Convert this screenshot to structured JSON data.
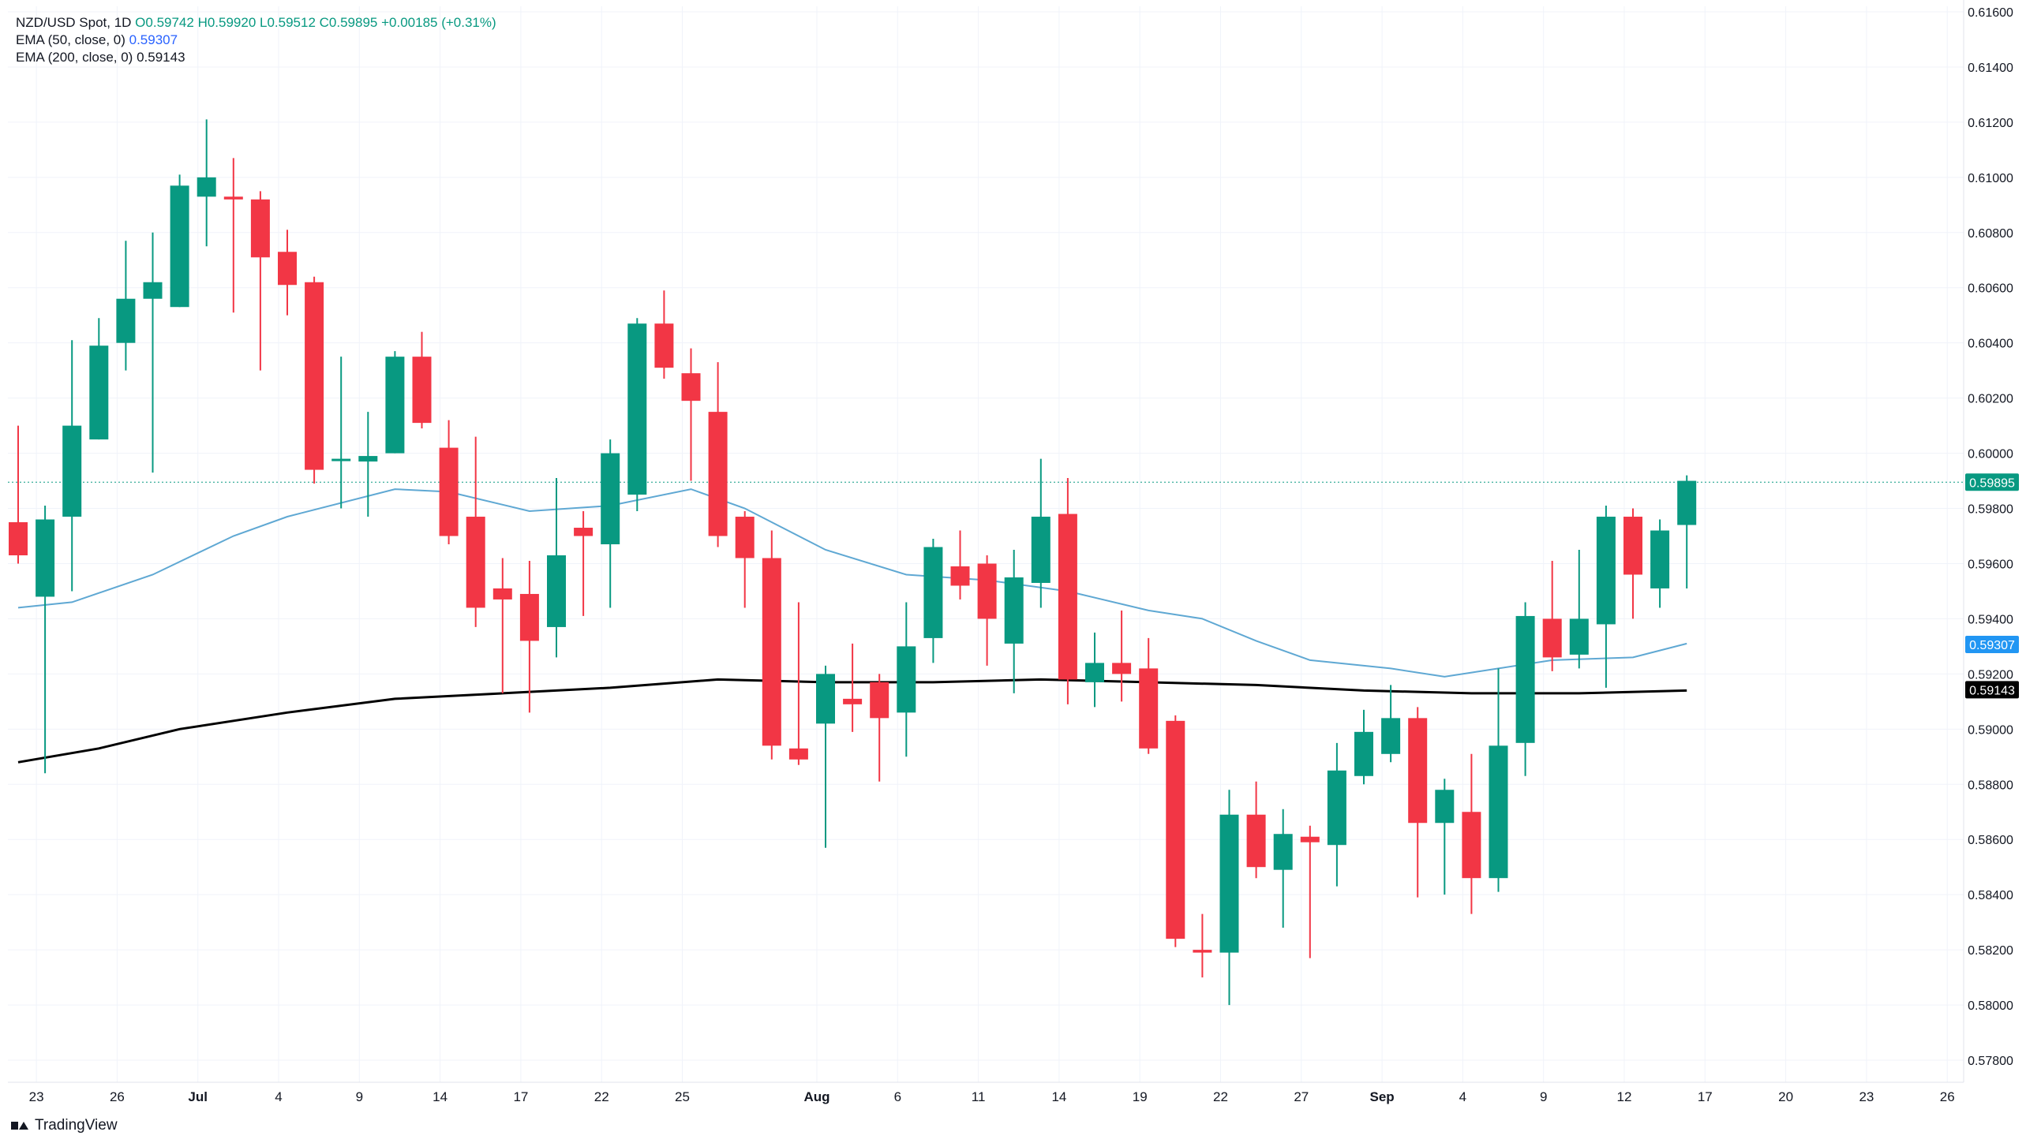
{
  "legend": {
    "symbol": "NZD/USD Spot, 1D",
    "ohlc": "O0.59742 H0.59920 L0.59512 C0.59895 +0.00185 (+0.31%)",
    "ema50_label": "EMA (50, close, 0)",
    "ema50_value": "0.59307",
    "ema200_label": "EMA (200, close, 0)",
    "ema200_value": "0.59143"
  },
  "brand": {
    "name": "TradingView",
    "logo_icon": "tradingview-logo-icon"
  },
  "colors": {
    "up": "#089981",
    "down": "#f23645",
    "ema50": "#5fa8d3",
    "ema200": "#000000",
    "price_tag": "#089981",
    "ema50_tag": "#2196f3",
    "ema200_tag": "#000000"
  },
  "chart_data": {
    "type": "candlestick",
    "ylim": [
      0.5772,
      0.6162
    ],
    "y_ticks": [
      "0.57800",
      "0.58000",
      "0.58200",
      "0.58400",
      "0.58600",
      "0.58800",
      "0.59000",
      "0.59200",
      "0.59400",
      "0.59600",
      "0.59800",
      "0.60000",
      "0.60200",
      "0.60400",
      "0.60600",
      "0.60800",
      "0.61000",
      "0.61200",
      "0.61400",
      "0.61600"
    ],
    "x_ticks": [
      {
        "label": "23",
        "idx": 1
      },
      {
        "label": "26",
        "idx": 4
      },
      {
        "label": "Jul",
        "idx": 7
      },
      {
        "label": "4",
        "idx": 10
      },
      {
        "label": "9",
        "idx": 13
      },
      {
        "label": "14",
        "idx": 16
      },
      {
        "label": "17",
        "idx": 19
      },
      {
        "label": "22",
        "idx": 22
      },
      {
        "label": "25",
        "idx": 25
      },
      {
        "label": "Aug",
        "idx": 30
      },
      {
        "label": "6",
        "idx": 33
      },
      {
        "label": "11",
        "idx": 36
      },
      {
        "label": "14",
        "idx": 39
      },
      {
        "label": "19",
        "idx": 42
      },
      {
        "label": "22",
        "idx": 45
      },
      {
        "label": "27",
        "idx": 48
      },
      {
        "label": "Sep",
        "idx": 51
      },
      {
        "label": "4",
        "idx": 54
      },
      {
        "label": "9",
        "idx": 57
      },
      {
        "label": "12",
        "idx": 60
      },
      {
        "label": "17",
        "idx": 63
      },
      {
        "label": "20",
        "idx": 66
      },
      {
        "label": "23",
        "idx": 69
      },
      {
        "label": "26",
        "idx": 72
      }
    ],
    "candles": [
      {
        "o": 0.5975,
        "h": 0.601,
        "l": 0.596,
        "c": 0.5963
      },
      {
        "o": 0.5948,
        "h": 0.5981,
        "l": 0.5884,
        "c": 0.5976
      },
      {
        "o": 0.5977,
        "h": 0.6041,
        "l": 0.595,
        "c": 0.601
      },
      {
        "o": 0.6005,
        "h": 0.6049,
        "l": 0.6005,
        "c": 0.6039
      },
      {
        "o": 0.604,
        "h": 0.6077,
        "l": 0.603,
        "c": 0.6056
      },
      {
        "o": 0.6056,
        "h": 0.608,
        "l": 0.5993,
        "c": 0.6062
      },
      {
        "o": 0.6053,
        "h": 0.6101,
        "l": 0.6053,
        "c": 0.6097
      },
      {
        "o": 0.6093,
        "h": 0.6121,
        "l": 0.6075,
        "c": 0.61
      },
      {
        "o": 0.6093,
        "h": 0.6107,
        "l": 0.6051,
        "c": 0.6092
      },
      {
        "o": 0.6092,
        "h": 0.6095,
        "l": 0.603,
        "c": 0.6071
      },
      {
        "o": 0.6073,
        "h": 0.6081,
        "l": 0.605,
        "c": 0.6061
      },
      {
        "o": 0.6062,
        "h": 0.6064,
        "l": 0.5989,
        "c": 0.5994
      },
      {
        "o": 0.5998,
        "h": 0.6035,
        "l": 0.598,
        "c": 0.5998
      },
      {
        "o": 0.5997,
        "h": 0.6015,
        "l": 0.5977,
        "c": 0.5999
      },
      {
        "o": 0.6,
        "h": 0.6037,
        "l": 0.6,
        "c": 0.6035
      },
      {
        "o": 0.6035,
        "h": 0.6044,
        "l": 0.6009,
        "c": 0.6011
      },
      {
        "o": 0.6002,
        "h": 0.6012,
        "l": 0.5967,
        "c": 0.597
      },
      {
        "o": 0.5977,
        "h": 0.6006,
        "l": 0.5937,
        "c": 0.5944
      },
      {
        "o": 0.5951,
        "h": 0.5962,
        "l": 0.5913,
        "c": 0.5947
      },
      {
        "o": 0.5949,
        "h": 0.5961,
        "l": 0.5906,
        "c": 0.5932
      },
      {
        "o": 0.5937,
        "h": 0.5991,
        "l": 0.5926,
        "c": 0.5963
      },
      {
        "o": 0.5973,
        "h": 0.5979,
        "l": 0.5941,
        "c": 0.597
      },
      {
        "o": 0.5967,
        "h": 0.6005,
        "l": 0.5944,
        "c": 0.6
      },
      {
        "o": 0.5985,
        "h": 0.6049,
        "l": 0.5979,
        "c": 0.6047
      },
      {
        "o": 0.6047,
        "h": 0.6059,
        "l": 0.6027,
        "c": 0.6031
      },
      {
        "o": 0.6029,
        "h": 0.6038,
        "l": 0.599,
        "c": 0.6019
      },
      {
        "o": 0.6015,
        "h": 0.6033,
        "l": 0.5966,
        "c": 0.597
      },
      {
        "o": 0.5977,
        "h": 0.5979,
        "l": 0.5944,
        "c": 0.5962
      },
      {
        "o": 0.5962,
        "h": 0.5972,
        "l": 0.5889,
        "c": 0.5894
      },
      {
        "o": 0.5893,
        "h": 0.5946,
        "l": 0.5887,
        "c": 0.5889
      },
      {
        "o": 0.5902,
        "h": 0.5923,
        "l": 0.5857,
        "c": 0.592
      },
      {
        "o": 0.5911,
        "h": 0.5931,
        "l": 0.5899,
        "c": 0.5909
      },
      {
        "o": 0.5917,
        "h": 0.592,
        "l": 0.5881,
        "c": 0.5904
      },
      {
        "o": 0.5906,
        "h": 0.5946,
        "l": 0.589,
        "c": 0.593
      },
      {
        "o": 0.5933,
        "h": 0.5969,
        "l": 0.5924,
        "c": 0.5966
      },
      {
        "o": 0.5959,
        "h": 0.5972,
        "l": 0.5947,
        "c": 0.5952
      },
      {
        "o": 0.596,
        "h": 0.5963,
        "l": 0.5923,
        "c": 0.594
      },
      {
        "o": 0.5931,
        "h": 0.5965,
        "l": 0.5913,
        "c": 0.5955
      },
      {
        "o": 0.5953,
        "h": 0.5998,
        "l": 0.5944,
        "c": 0.5977
      },
      {
        "o": 0.5978,
        "h": 0.5991,
        "l": 0.5909,
        "c": 0.5918
      },
      {
        "o": 0.5917,
        "h": 0.5935,
        "l": 0.5908,
        "c": 0.5924
      },
      {
        "o": 0.5924,
        "h": 0.5943,
        "l": 0.591,
        "c": 0.592
      },
      {
        "o": 0.5922,
        "h": 0.5933,
        "l": 0.5891,
        "c": 0.5893
      },
      {
        "o": 0.5903,
        "h": 0.5905,
        "l": 0.5821,
        "c": 0.5824
      },
      {
        "o": 0.582,
        "h": 0.5833,
        "l": 0.581,
        "c": 0.5819
      },
      {
        "o": 0.5819,
        "h": 0.5878,
        "l": 0.58,
        "c": 0.5869
      },
      {
        "o": 0.5869,
        "h": 0.5881,
        "l": 0.5846,
        "c": 0.585
      },
      {
        "o": 0.5849,
        "h": 0.5871,
        "l": 0.5828,
        "c": 0.5862
      },
      {
        "o": 0.5861,
        "h": 0.5865,
        "l": 0.5817,
        "c": 0.5859
      },
      {
        "o": 0.5858,
        "h": 0.5895,
        "l": 0.5843,
        "c": 0.5885
      },
      {
        "o": 0.5883,
        "h": 0.5907,
        "l": 0.588,
        "c": 0.5899
      },
      {
        "o": 0.5891,
        "h": 0.5916,
        "l": 0.5888,
        "c": 0.5904
      },
      {
        "o": 0.5904,
        "h": 0.5908,
        "l": 0.5839,
        "c": 0.5866
      },
      {
        "o": 0.5866,
        "h": 0.5882,
        "l": 0.584,
        "c": 0.5878
      },
      {
        "o": 0.587,
        "h": 0.5891,
        "l": 0.5833,
        "c": 0.5846
      },
      {
        "o": 0.5846,
        "h": 0.5922,
        "l": 0.5841,
        "c": 0.5894
      },
      {
        "o": 0.5895,
        "h": 0.5946,
        "l": 0.5883,
        "c": 0.5941
      },
      {
        "o": 0.594,
        "h": 0.5961,
        "l": 0.5921,
        "c": 0.5926
      },
      {
        "o": 0.5927,
        "h": 0.5965,
        "l": 0.5922,
        "c": 0.594
      },
      {
        "o": 0.5938,
        "h": 0.5981,
        "l": 0.5915,
        "c": 0.5977
      },
      {
        "o": 0.5977,
        "h": 0.598,
        "l": 0.594,
        "c": 0.5956
      },
      {
        "o": 0.5951,
        "h": 0.5976,
        "l": 0.5944,
        "c": 0.5972
      },
      {
        "o": 0.5974,
        "h": 0.5992,
        "l": 0.5951,
        "c": 0.599
      }
    ],
    "ema50": [
      [
        0,
        0.5944
      ],
      [
        2,
        0.5946
      ],
      [
        5,
        0.5956
      ],
      [
        8,
        0.597
      ],
      [
        10,
        0.5977
      ],
      [
        14,
        0.5987
      ],
      [
        16,
        0.5986
      ],
      [
        19,
        0.5979
      ],
      [
        22,
        0.5981
      ],
      [
        25,
        0.5987
      ],
      [
        27,
        0.598
      ],
      [
        30,
        0.5965
      ],
      [
        33,
        0.5956
      ],
      [
        36,
        0.5954
      ],
      [
        39,
        0.595
      ],
      [
        42,
        0.5943
      ],
      [
        44,
        0.594
      ],
      [
        46,
        0.5932
      ],
      [
        48,
        0.5925
      ],
      [
        51,
        0.5922
      ],
      [
        53,
        0.5919
      ],
      [
        55,
        0.5922
      ],
      [
        57,
        0.5925
      ],
      [
        60,
        0.5926
      ],
      [
        62,
        0.5931
      ]
    ],
    "ema200": [
      [
        0,
        0.5888
      ],
      [
        3,
        0.5893
      ],
      [
        6,
        0.59
      ],
      [
        10,
        0.5906
      ],
      [
        14,
        0.5911
      ],
      [
        18,
        0.5913
      ],
      [
        22,
        0.5915
      ],
      [
        26,
        0.5918
      ],
      [
        30,
        0.5917
      ],
      [
        34,
        0.5917
      ],
      [
        38,
        0.5918
      ],
      [
        42,
        0.5917
      ],
      [
        46,
        0.5916
      ],
      [
        50,
        0.5914
      ],
      [
        54,
        0.5913
      ],
      [
        58,
        0.5913
      ],
      [
        62,
        0.5914
      ]
    ],
    "last_price": {
      "value": 0.59895,
      "label": "0.59895"
    },
    "ema50_last": {
      "value": 0.59307,
      "label": "0.59307"
    },
    "ema200_last": {
      "value": 0.59143,
      "label": "0.59143"
    }
  }
}
